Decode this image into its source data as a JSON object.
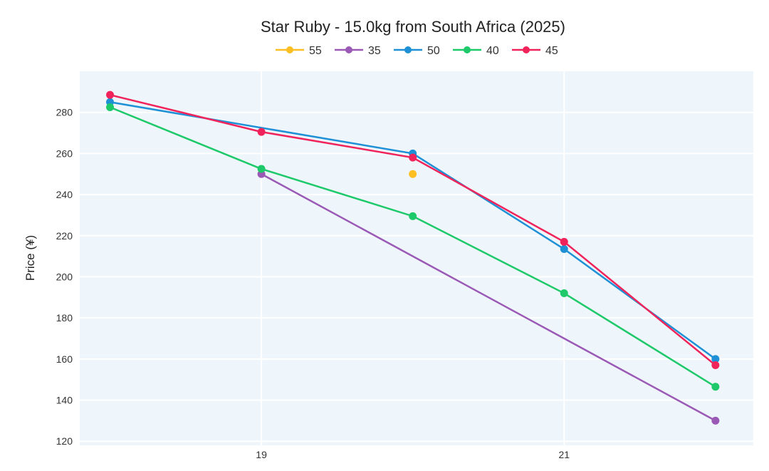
{
  "chart_data": {
    "type": "line",
    "title": "Star Ruby - 15.0kg from South Africa (2025)",
    "xlabel": "",
    "ylabel": "Price (¥)",
    "xlim": [
      17.8,
      22.25
    ],
    "ylim": [
      118,
      300
    ],
    "xticks": [
      19,
      21
    ],
    "yticks": [
      120,
      140,
      160,
      180,
      200,
      220,
      240,
      260,
      280
    ],
    "grid": true,
    "legend": "top-center",
    "series": [
      {
        "name": "55",
        "color": "#fbbf24",
        "x": [
          20
        ],
        "y": [
          250
        ]
      },
      {
        "name": "35",
        "color": "#9b59b6",
        "x": [
          19,
          22
        ],
        "y": [
          250,
          130
        ]
      },
      {
        "name": "50",
        "color": "#1e90d6",
        "x": [
          18,
          20,
          21,
          22
        ],
        "y": [
          285,
          260,
          213.5,
          160
        ]
      },
      {
        "name": "40",
        "color": "#1ec96a",
        "x": [
          18,
          19,
          20,
          21,
          22
        ],
        "y": [
          282.5,
          252.5,
          229.5,
          192,
          146.5
        ]
      },
      {
        "name": "45",
        "color": "#f0245a",
        "x": [
          18,
          19,
          20,
          21,
          22
        ],
        "y": [
          288.5,
          270.5,
          258,
          217,
          157
        ]
      }
    ]
  }
}
